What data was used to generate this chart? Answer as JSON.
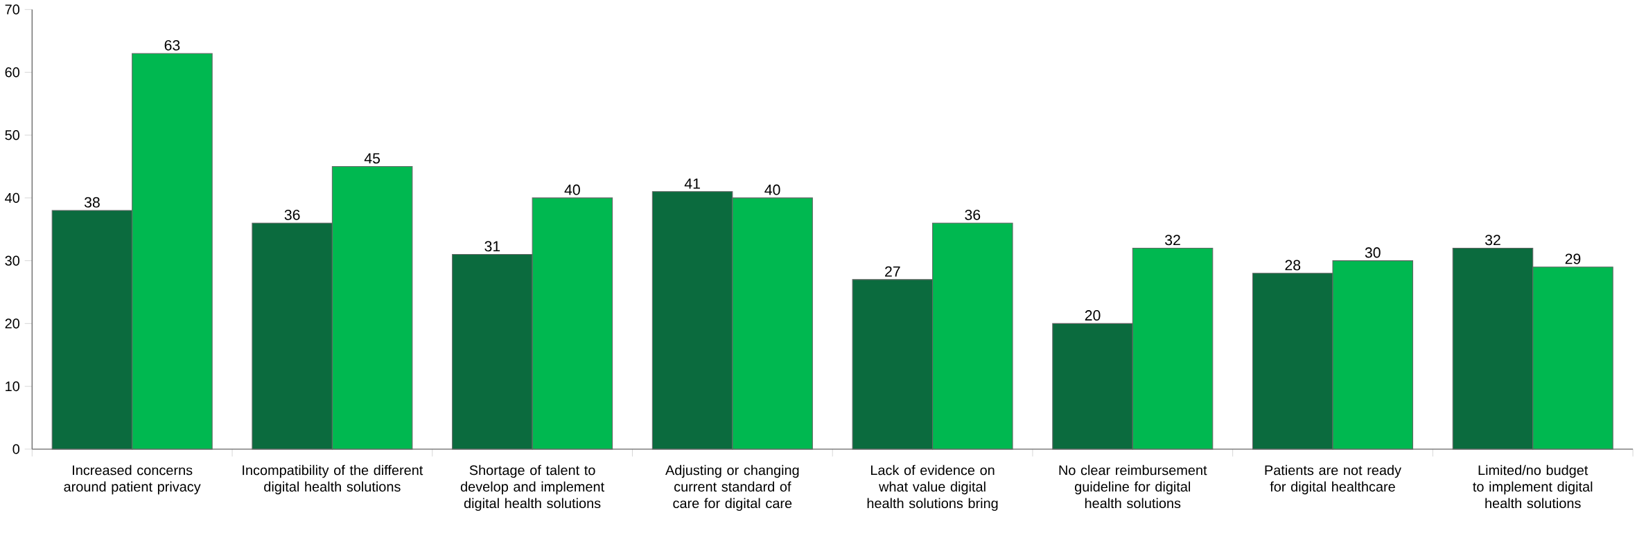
{
  "chart_data": {
    "type": "bar",
    "categories": [
      "Increased concerns around patient privacy",
      "Incompatibility of the different digital health solutions",
      "Shortage of talent to develop and implement digital health solutions",
      "Adjusting or changing current standard of care for digital care",
      "Lack of evidence on what value digital health solutions bring",
      "No clear reimbursement guideline for digital health solutions",
      "Patients are not ready for digital healthcare",
      "Limited/no budget to implement digital health solutions"
    ],
    "series": [
      {
        "color": "#0b6b3e",
        "values": [
          38,
          36,
          31,
          41,
          27,
          20,
          28,
          32
        ]
      },
      {
        "color": "#00b850",
        "values": [
          63,
          45,
          40,
          40,
          36,
          32,
          30,
          29
        ]
      }
    ],
    "ylim": [
      0,
      70
    ],
    "yticks": [
      0,
      10,
      20,
      30,
      40,
      50,
      60,
      70
    ],
    "data_labels": true
  }
}
